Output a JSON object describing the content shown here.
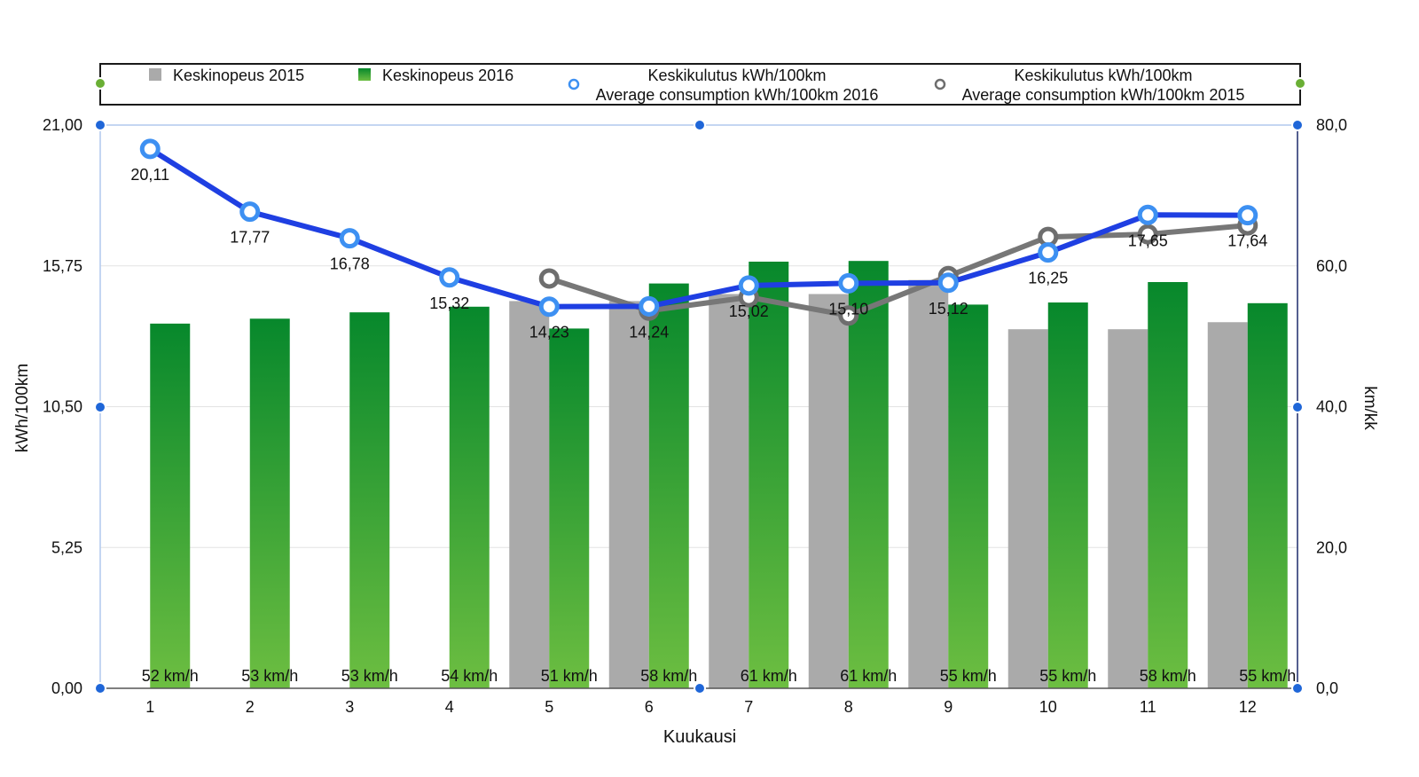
{
  "chart_data": {
    "type": "bar",
    "categories": [
      "1",
      "2",
      "3",
      "4",
      "5",
      "6",
      "7",
      "8",
      "9",
      "10",
      "11",
      "12"
    ],
    "xlabel": "Kuukausi",
    "ylabel": "kWh/100km",
    "y2label": "km/kk",
    "ylim": [
      0,
      21
    ],
    "y2lim": [
      0,
      80
    ],
    "yticks": [
      0,
      5.25,
      10.5,
      15.75,
      21
    ],
    "ytick_labels": [
      "0,00",
      "5,25",
      "10,50",
      "15,75",
      "21,00"
    ],
    "y2ticks": [
      0,
      20,
      40,
      60,
      80
    ],
    "y2tick_labels": [
      "0,0",
      "20,0",
      "40,0",
      "60,0",
      "80,0"
    ],
    "grid": true,
    "legend_position": "top",
    "series": [
      {
        "name": "Keskinopeus 2015",
        "type": "bar",
        "secondary_axis": true,
        "color": "#aaaaaa",
        "values": [
          null,
          null,
          null,
          null,
          55,
          55,
          56,
          56,
          58,
          51,
          51,
          52
        ]
      },
      {
        "name": "Keskinopeus 2016",
        "type": "bar",
        "secondary_axis": true,
        "color": "#1a9a36",
        "gradient_top": "#07882c",
        "gradient_bottom": "#6dbe41",
        "values": [
          51.8,
          52.5,
          53.4,
          54.2,
          51.1,
          57.5,
          60.6,
          60.7,
          54.5,
          54.8,
          57.7,
          54.7
        ],
        "data_labels": [
          "52 km/h",
          "53 km/h",
          "53 km/h",
          "54 km/h",
          "51 km/h",
          "58 km/h",
          "61 km/h",
          "61 km/h",
          "55 km/h",
          "55 km/h",
          "58 km/h",
          "55 km/h"
        ]
      },
      {
        "name_lines": [
          "Keskikulutus kWh/100km",
          "Average consumption kWh/100km 2016"
        ],
        "type": "line",
        "secondary_axis": false,
        "color": "#1f3fe2",
        "marker_color": "#3d90f2",
        "values": [
          20.11,
          17.77,
          16.78,
          15.32,
          14.23,
          14.24,
          15.02,
          15.1,
          15.12,
          16.25,
          17.65,
          17.64
        ],
        "data_labels": [
          "20,11",
          "17,77",
          "16,78",
          "15,32",
          "14,23",
          "14,24",
          "15,02",
          "15,10",
          "15,12",
          "16,25",
          "17,65",
          "17,64"
        ]
      },
      {
        "name_lines": [
          "Keskikulutus kWh/100km",
          "Average consumption kWh/100km 2015"
        ],
        "type": "line",
        "secondary_axis": false,
        "color": "#777777",
        "marker_color": "#6e6e6e",
        "values": [
          null,
          null,
          null,
          null,
          15.28,
          14.08,
          14.58,
          13.9,
          15.37,
          16.83,
          16.93,
          17.26
        ]
      }
    ]
  }
}
